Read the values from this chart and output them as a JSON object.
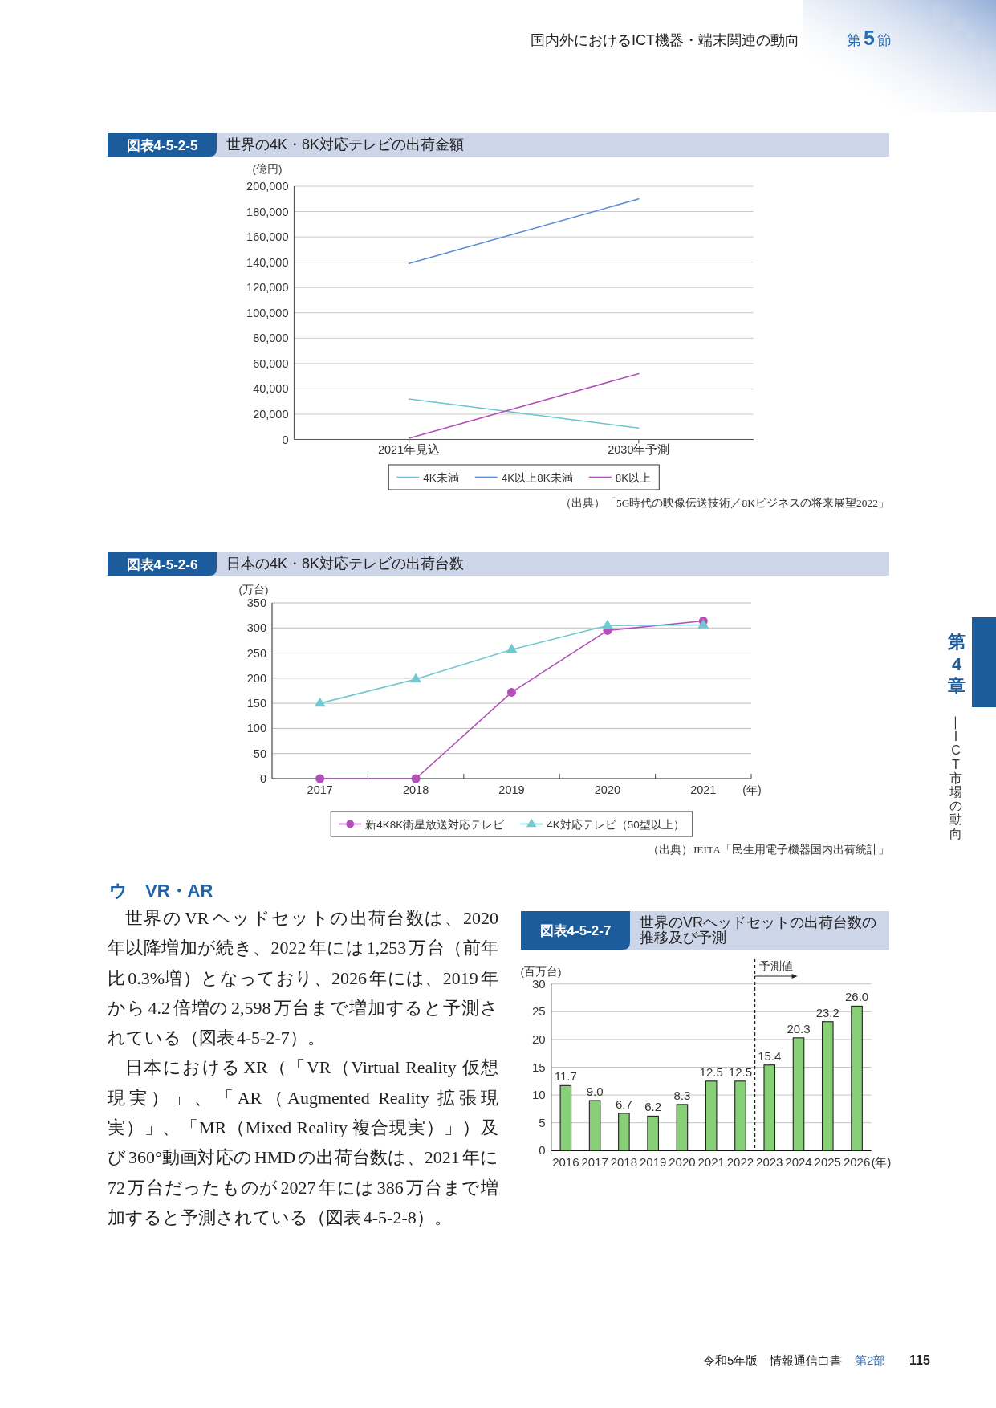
{
  "chart_data": [
    {
      "type": "line",
      "subtitle": "図表4-5-2-5",
      "title": "世界の4K・8K対応テレビの出荷金額",
      "ylabel": "(億円)",
      "categories": [
        "2021年見込",
        "2030年予測"
      ],
      "series": [
        {
          "name": "4K未満",
          "color": "#6cc5cf",
          "values": [
            32000,
            9000
          ]
        },
        {
          "name": "4K以上8K未満",
          "color": "#5a8bd6",
          "values": [
            139000,
            190000
          ]
        },
        {
          "name": "8K以上",
          "color": "#b24fb8",
          "values": [
            1000,
            52000
          ]
        }
      ],
      "ylim": [
        0,
        200000
      ],
      "yticks": [
        0,
        {
          "value": 20000,
          "label": "20,000"
        },
        {
          "value": 40000,
          "label": "40,000"
        },
        {
          "value": 60000,
          "label": "60,000"
        },
        {
          "value": 80000,
          "label": "80,000"
        },
        {
          "value": 100000,
          "label": "100,000"
        },
        {
          "value": 120000,
          "label": "120,000"
        },
        {
          "value": 140000,
          "label": "140,000"
        },
        {
          "value": 160000,
          "label": "160,000"
        },
        {
          "value": 180000,
          "label": "180,000"
        },
        {
          "value": 200000,
          "label": "200,000"
        }
      ],
      "grid": "y",
      "legend": "bottom",
      "annotations": [
        "（出典）「5G時代の映像伝送技術／8Kビジネスの将来展望2022」"
      ]
    },
    {
      "type": "line",
      "subtitle": "図表4-5-2-6",
      "title": "日本の4K・8K対応テレビの出荷台数",
      "ylabel": "(万台)",
      "xlabel": "(年)",
      "categories": [
        "2017",
        "2018",
        "2019",
        "2020",
        "2021"
      ],
      "series": [
        {
          "name": "新4K8K衛星放送対応テレビ",
          "color": "#b050b8",
          "marker": "circle",
          "values": [
            0,
            0,
            172,
            295,
            314
          ]
        },
        {
          "name": "4K対応テレビ（50型以上）",
          "color": "#72c8d0",
          "marker": "triangle",
          "values": [
            150,
            198,
            257,
            305,
            306
          ]
        }
      ],
      "ylim": [
        0,
        350
      ],
      "yticks": [
        0,
        50,
        100,
        150,
        200,
        250,
        300,
        350
      ],
      "grid": "y",
      "legend": "bottom",
      "annotations": [
        "（出典）JEITA「民生用電子機器国内出荷統計」"
      ]
    },
    {
      "type": "bar",
      "subtitle": "図表4-5-2-7",
      "title": "世界のVRヘッドセットの出荷台数の推移及び予測",
      "ylabel": "(百万台)",
      "xlabel": "(年)",
      "categories": [
        "2016",
        "2017",
        "2018",
        "2019",
        "2020",
        "2021",
        "2022",
        "2023",
        "2024",
        "2025",
        "2026"
      ],
      "values": [
        11.7,
        9.0,
        6.7,
        6.2,
        8.3,
        12.5,
        12.5,
        15.4,
        20.3,
        23.2,
        26.0
      ],
      "value_labels": [
        "11.7",
        "9.0",
        "6.7",
        "6.2",
        "8.3",
        "12.5",
        "12.5",
        "15.4",
        "20.3",
        "23.2",
        "26.0"
      ],
      "color": "#88d077",
      "ylim": [
        0,
        30
      ],
      "yticks": [
        0,
        5,
        10,
        15,
        20,
        25,
        30
      ],
      "grid": "y",
      "ref_lines": [
        {
          "axis": "x",
          "value": "2023",
          "label": "予測値",
          "line_style": "dashed"
        }
      ]
    },
    {
      "type": "other",
      "title": "ウ　VR・AR",
      "annotations": [
        "世界のVRヘッドセットの出荷台数は、2020年以降増加が続き、2022年には1,253万台（前年比0.3%増）となっており、2026年には、2019年から4.2倍増の2,598万台まで増加すると予測されている（図表4-5-2-7）。",
        "日本におけるXR（「VR（Virtual Reality 仮想現実）」、「AR（Augmented Reality 拡張現実）」、「MR（Mixed Reality 複合現実）」）及び360°動画対応のHMDの出荷台数は、2021年に72万台だったものが2027年には386万台まで増加すると予測されている（図表4-5-2-8）。"
      ]
    },
    {
      "type": "other",
      "annotations": [
        "国内外におけるICT機器・端末関連の動向",
        "第5節",
        "第4章",
        "―ICT市場の動向",
        "令和5年版　情報通信白書",
        "第2部",
        "115"
      ]
    }
  ]
}
